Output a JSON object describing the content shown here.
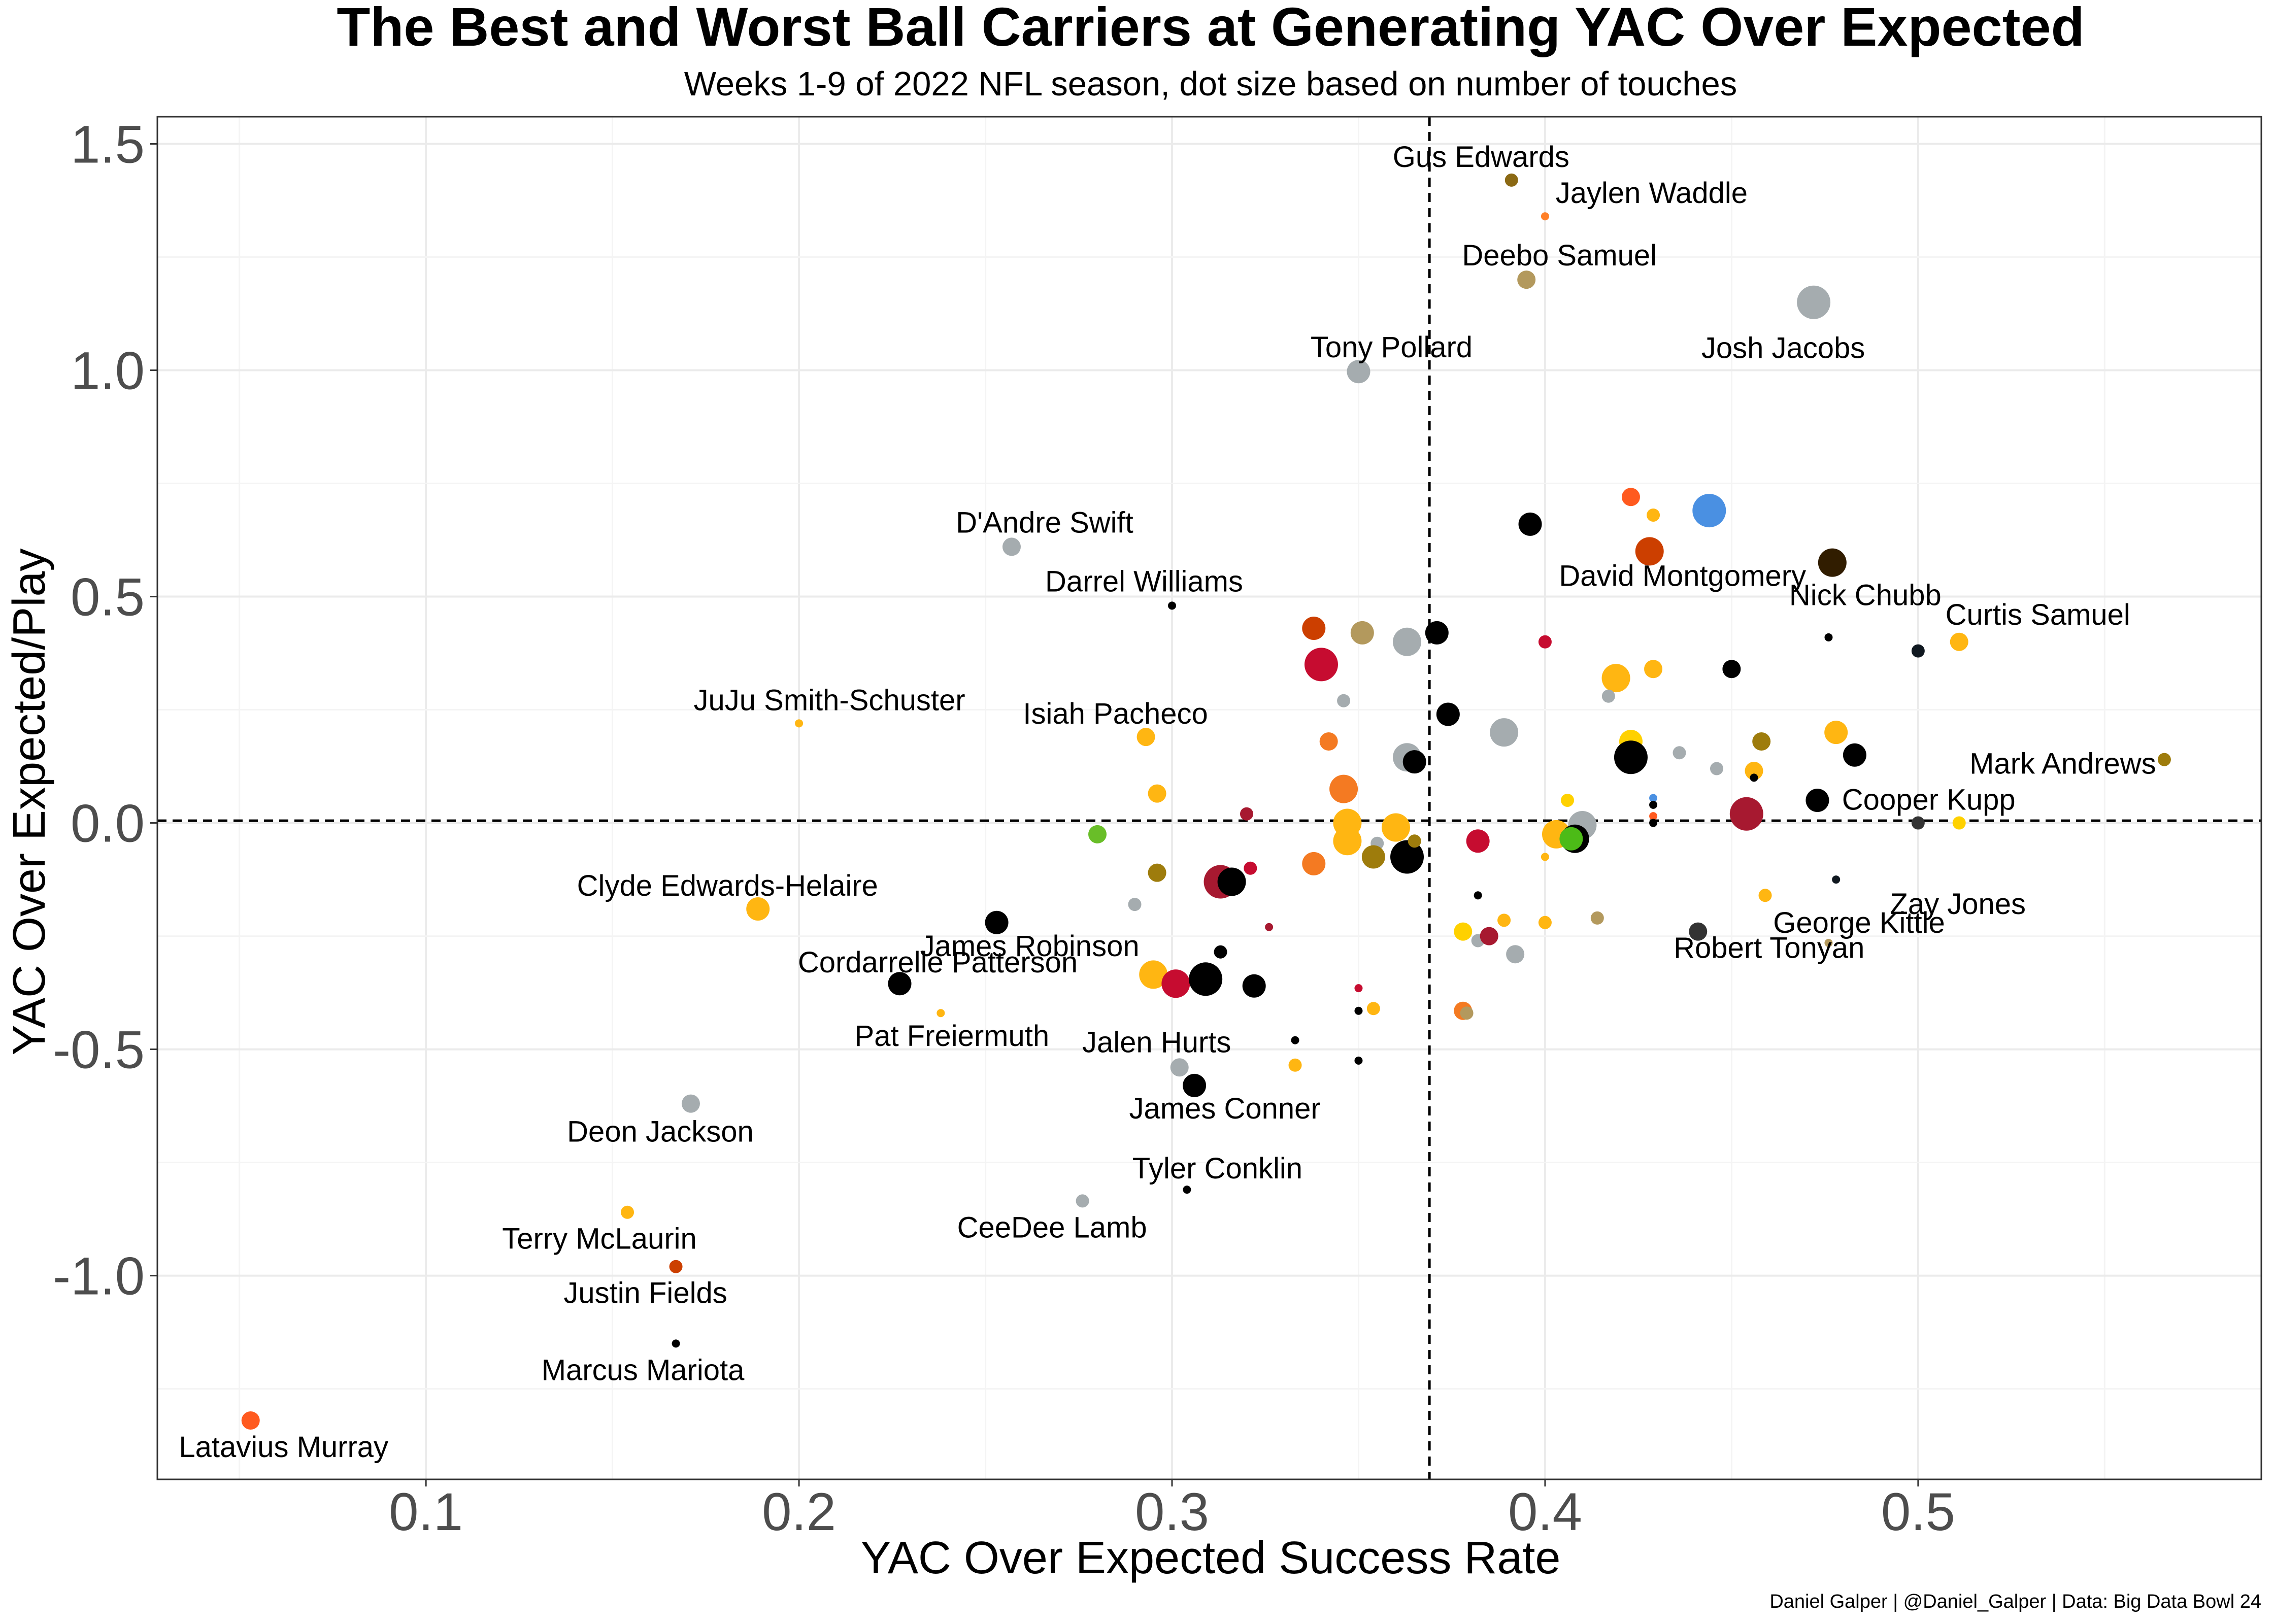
{
  "chart_data": {
    "type": "scatter",
    "title": "The Best and Worst Ball Carriers at Generating YAC Over Expected",
    "subtitle": "Weeks 1-9 of 2022 NFL season, dot size based on number of touches",
    "xlabel": "YAC Over Expected Success Rate",
    "ylabel": "YAC Over Expected/Play",
    "caption": "Daniel Galper | @Daniel_Galper | Data: Big Data Bowl 24",
    "xlim": [
      0.028,
      0.592
    ],
    "ylim": [
      -1.45,
      1.56
    ],
    "x_ticks": [
      0.1,
      0.2,
      0.3,
      0.4,
      0.5
    ],
    "x_tick_labels": [
      "0.1",
      "0.2",
      "0.3",
      "0.4",
      "0.5"
    ],
    "y_ticks": [
      -1.0,
      -0.5,
      0.0,
      0.5,
      1.0,
      1.5
    ],
    "y_tick_labels": [
      "-1.0",
      "-0.5",
      "0.0",
      "0.5",
      "1.0",
      "1.5"
    ],
    "grid": true,
    "reference_lines": {
      "x": 0.369,
      "y": 0.005
    },
    "points": [
      {
        "x": 0.391,
        "y": 1.42,
        "size": 2,
        "color": "#8B6914",
        "label": "Gus Edwards"
      },
      {
        "x": 0.4,
        "y": 1.34,
        "size": 1,
        "color": "#FF7F27",
        "label": "Jaylen Waddle"
      },
      {
        "x": 0.395,
        "y": 1.2,
        "size": 3,
        "color": "#B3995D",
        "label": "Deebo Samuel"
      },
      {
        "x": 0.472,
        "y": 1.15,
        "size": 6,
        "color": "#A5ACAF",
        "label": "Josh Jacobs"
      },
      {
        "x": 0.35,
        "y": 0.997,
        "size": 4,
        "color": "#A5ACAF",
        "label": "Tony Pollard"
      },
      {
        "x": 0.444,
        "y": 0.69,
        "size": 6,
        "color": "#4A90E2"
      },
      {
        "x": 0.423,
        "y": 0.72,
        "size": 3,
        "color": "#FF5A1F"
      },
      {
        "x": 0.429,
        "y": 0.68,
        "size": 2,
        "color": "#FFB612"
      },
      {
        "x": 0.396,
        "y": 0.66,
        "size": 4,
        "color": "#000000"
      },
      {
        "x": 0.428,
        "y": 0.6,
        "size": 5,
        "color": "#CC3F00",
        "label": "David Montgomery"
      },
      {
        "x": 0.477,
        "y": 0.575,
        "size": 5,
        "color": "#311D00",
        "label": "Nick Chubb"
      },
      {
        "x": 0.257,
        "y": 0.61,
        "size": 3,
        "color": "#A5ACAF",
        "label": "D'Andre Swift"
      },
      {
        "x": 0.3,
        "y": 0.48,
        "size": 1,
        "color": "#000000",
        "label": "Darrel Williams"
      },
      {
        "x": 0.476,
        "y": 0.41,
        "size": 1,
        "color": "#000000"
      },
      {
        "x": 0.511,
        "y": 0.4,
        "size": 3,
        "color": "#FFB612",
        "label": "Curtis Samuel"
      },
      {
        "x": 0.5,
        "y": 0.38,
        "size": 2,
        "color": "#101820"
      },
      {
        "x": 0.566,
        "y": 0.14,
        "size": 2,
        "color": "#9E7C0C",
        "label": "Mark Andrews"
      },
      {
        "x": 0.2,
        "y": 0.22,
        "size": 1,
        "color": "#FFB612",
        "label": "JuJu Smith-Schuster"
      },
      {
        "x": 0.293,
        "y": 0.19,
        "size": 3,
        "color": "#FFB612",
        "label": "Isiah Pacheco"
      },
      {
        "x": 0.338,
        "y": 0.43,
        "size": 4,
        "color": "#CC3F00"
      },
      {
        "x": 0.351,
        "y": 0.42,
        "size": 4,
        "color": "#B3995D"
      },
      {
        "x": 0.363,
        "y": 0.4,
        "size": 5,
        "color": "#A5ACAF"
      },
      {
        "x": 0.371,
        "y": 0.42,
        "size": 4,
        "color": "#000000"
      },
      {
        "x": 0.34,
        "y": 0.35,
        "size": 6,
        "color": "#C60C30"
      },
      {
        "x": 0.4,
        "y": 0.4,
        "size": 2,
        "color": "#C60C30"
      },
      {
        "x": 0.419,
        "y": 0.32,
        "size": 5,
        "color": "#FFB612"
      },
      {
        "x": 0.429,
        "y": 0.34,
        "size": 3,
        "color": "#FFB612"
      },
      {
        "x": 0.45,
        "y": 0.34,
        "size": 3,
        "color": "#000000"
      },
      {
        "x": 0.346,
        "y": 0.27,
        "size": 2,
        "color": "#A5ACAF"
      },
      {
        "x": 0.417,
        "y": 0.28,
        "size": 2,
        "color": "#A5ACAF"
      },
      {
        "x": 0.374,
        "y": 0.24,
        "size": 4,
        "color": "#000000"
      },
      {
        "x": 0.389,
        "y": 0.2,
        "size": 5,
        "color": "#A5ACAF"
      },
      {
        "x": 0.478,
        "y": 0.2,
        "size": 4,
        "color": "#FFB612"
      },
      {
        "x": 0.342,
        "y": 0.18,
        "size": 3,
        "color": "#F47A22"
      },
      {
        "x": 0.423,
        "y": 0.18,
        "size": 4,
        "color": "#FFD100"
      },
      {
        "x": 0.458,
        "y": 0.18,
        "size": 3,
        "color": "#9E7C0C"
      },
      {
        "x": 0.363,
        "y": 0.145,
        "size": 5,
        "color": "#A5ACAF"
      },
      {
        "x": 0.365,
        "y": 0.135,
        "size": 4,
        "color": "#000000"
      },
      {
        "x": 0.423,
        "y": 0.145,
        "size": 6,
        "color": "#000000"
      },
      {
        "x": 0.436,
        "y": 0.155,
        "size": 2,
        "color": "#A5ACAF"
      },
      {
        "x": 0.446,
        "y": 0.12,
        "size": 2,
        "color": "#A5ACAF"
      },
      {
        "x": 0.456,
        "y": 0.115,
        "size": 3,
        "color": "#FFB612"
      },
      {
        "x": 0.483,
        "y": 0.15,
        "size": 4,
        "color": "#000000"
      },
      {
        "x": 0.456,
        "y": 0.1,
        "size": 1,
        "color": "#000000"
      },
      {
        "x": 0.346,
        "y": 0.075,
        "size": 5,
        "color": "#F47A22"
      },
      {
        "x": 0.296,
        "y": 0.065,
        "size": 3,
        "color": "#FFB612"
      },
      {
        "x": 0.32,
        "y": 0.02,
        "size": 2,
        "color": "#A71930"
      },
      {
        "x": 0.28,
        "y": -0.025,
        "size": 3,
        "color": "#69BE28"
      },
      {
        "x": 0.347,
        "y": 0.0,
        "size": 5,
        "color": "#FFB612"
      },
      {
        "x": 0.36,
        "y": -0.01,
        "size": 5,
        "color": "#FFB612"
      },
      {
        "x": 0.347,
        "y": -0.04,
        "size": 5,
        "color": "#FFB612"
      },
      {
        "x": 0.355,
        "y": -0.045,
        "size": 2,
        "color": "#A5ACAF"
      },
      {
        "x": 0.363,
        "y": -0.075,
        "size": 6,
        "color": "#000000"
      },
      {
        "x": 0.354,
        "y": -0.075,
        "size": 4,
        "color": "#9E7C0C"
      },
      {
        "x": 0.365,
        "y": -0.04,
        "size": 2,
        "color": "#9E7C0C"
      },
      {
        "x": 0.406,
        "y": 0.05,
        "size": 2,
        "color": "#FFD100"
      },
      {
        "x": 0.403,
        "y": -0.025,
        "size": 5,
        "color": "#FFB612"
      },
      {
        "x": 0.41,
        "y": -0.005,
        "size": 5,
        "color": "#A5ACAF"
      },
      {
        "x": 0.408,
        "y": -0.035,
        "size": 5,
        "color": "#000000"
      },
      {
        "x": 0.407,
        "y": -0.035,
        "size": 4,
        "color": "#4CBB17"
      },
      {
        "x": 0.382,
        "y": -0.04,
        "size": 4,
        "color": "#C60C30"
      },
      {
        "x": 0.429,
        "y": 0.055,
        "size": 1,
        "color": "#4A90E2"
      },
      {
        "x": 0.429,
        "y": 0.04,
        "size": 1,
        "color": "#000000"
      },
      {
        "x": 0.429,
        "y": 0.015,
        "size": 1,
        "color": "#FF5A1F"
      },
      {
        "x": 0.429,
        "y": 0.0,
        "size": 1,
        "color": "#000000"
      },
      {
        "x": 0.454,
        "y": 0.02,
        "size": 6,
        "color": "#A71930"
      },
      {
        "x": 0.473,
        "y": 0.05,
        "size": 4,
        "color": "#000000"
      },
      {
        "x": 0.5,
        "y": 0.0,
        "size": 2,
        "color": "#333333"
      },
      {
        "x": 0.511,
        "y": 0.0,
        "size": 2,
        "color": "#FFD100",
        "label": "Cooper Kupp"
      },
      {
        "x": 0.4,
        "y": -0.075,
        "size": 1,
        "color": "#FFB612"
      },
      {
        "x": 0.478,
        "y": -0.125,
        "size": 1,
        "color": "#101820",
        "label": "Zay Jones"
      },
      {
        "x": 0.321,
        "y": -0.1,
        "size": 2,
        "color": "#C60C30"
      },
      {
        "x": 0.338,
        "y": -0.09,
        "size": 4,
        "color": "#F47A22"
      },
      {
        "x": 0.296,
        "y": -0.11,
        "size": 3,
        "color": "#9E7C0C"
      },
      {
        "x": 0.313,
        "y": -0.13,
        "size": 6,
        "color": "#A71930"
      },
      {
        "x": 0.316,
        "y": -0.13,
        "size": 5,
        "color": "#000000"
      },
      {
        "x": 0.189,
        "y": -0.19,
        "size": 4,
        "color": "#FFB612",
        "label": "Clyde Edwards-Helaire"
      },
      {
        "x": 0.29,
        "y": -0.18,
        "size": 2,
        "color": "#A5ACAF"
      },
      {
        "x": 0.253,
        "y": -0.22,
        "size": 4,
        "color": "#000000",
        "label": "James Robinson"
      },
      {
        "x": 0.326,
        "y": -0.23,
        "size": 1,
        "color": "#A71930"
      },
      {
        "x": 0.382,
        "y": -0.16,
        "size": 1,
        "color": "#000000"
      },
      {
        "x": 0.459,
        "y": -0.16,
        "size": 2,
        "color": "#FFB612"
      },
      {
        "x": 0.389,
        "y": -0.215,
        "size": 2,
        "color": "#FFB612"
      },
      {
        "x": 0.4,
        "y": -0.22,
        "size": 2,
        "color": "#FFB612"
      },
      {
        "x": 0.414,
        "y": -0.21,
        "size": 2,
        "color": "#B3995D"
      },
      {
        "x": 0.378,
        "y": -0.24,
        "size": 3,
        "color": "#FFD100"
      },
      {
        "x": 0.382,
        "y": -0.26,
        "size": 2,
        "color": "#A5ACAF"
      },
      {
        "x": 0.385,
        "y": -0.25,
        "size": 3,
        "color": "#A71930"
      },
      {
        "x": 0.392,
        "y": -0.29,
        "size": 3,
        "color": "#A5ACAF"
      },
      {
        "x": 0.441,
        "y": -0.24,
        "size": 3,
        "color": "#333333",
        "label": "Robert Tonyan"
      },
      {
        "x": 0.476,
        "y": -0.265,
        "size": 1,
        "color": "#B3995D",
        "label": "George Kittle"
      },
      {
        "x": 0.227,
        "y": -0.355,
        "size": 4,
        "color": "#000000",
        "label": "Cordarrelle Patterson"
      },
      {
        "x": 0.295,
        "y": -0.335,
        "size": 5,
        "color": "#FFB612"
      },
      {
        "x": 0.301,
        "y": -0.355,
        "size": 5,
        "color": "#C60C30"
      },
      {
        "x": 0.309,
        "y": -0.345,
        "size": 6,
        "color": "#000000"
      },
      {
        "x": 0.313,
        "y": -0.285,
        "size": 2,
        "color": "#000000"
      },
      {
        "x": 0.322,
        "y": -0.36,
        "size": 4,
        "color": "#000000"
      },
      {
        "x": 0.238,
        "y": -0.42,
        "size": 1,
        "color": "#FFB612",
        "label": "Pat Freiermuth"
      },
      {
        "x": 0.35,
        "y": -0.365,
        "size": 1,
        "color": "#C60C30"
      },
      {
        "x": 0.35,
        "y": -0.415,
        "size": 1,
        "color": "#000000"
      },
      {
        "x": 0.354,
        "y": -0.41,
        "size": 2,
        "color": "#FFB612"
      },
      {
        "x": 0.378,
        "y": -0.415,
        "size": 3,
        "color": "#F47A22"
      },
      {
        "x": 0.379,
        "y": -0.42,
        "size": 2,
        "color": "#B3995D"
      },
      {
        "x": 0.333,
        "y": -0.48,
        "size": 1,
        "color": "#000000"
      },
      {
        "x": 0.302,
        "y": -0.54,
        "size": 3,
        "color": "#A5ACAF",
        "label": "Jalen Hurts"
      },
      {
        "x": 0.333,
        "y": -0.535,
        "size": 2,
        "color": "#FFB612"
      },
      {
        "x": 0.35,
        "y": -0.525,
        "size": 1,
        "color": "#000000"
      },
      {
        "x": 0.306,
        "y": -0.58,
        "size": 4,
        "color": "#000000",
        "label": "James Conner"
      },
      {
        "x": 0.171,
        "y": -0.62,
        "size": 3,
        "color": "#A5ACAF",
        "label": "Deon Jackson"
      },
      {
        "x": 0.304,
        "y": -0.81,
        "size": 1,
        "color": "#000000",
        "label": "Tyler Conklin"
      },
      {
        "x": 0.276,
        "y": -0.835,
        "size": 2,
        "color": "#A5ACAF",
        "label": "CeeDee Lamb"
      },
      {
        "x": 0.154,
        "y": -0.86,
        "size": 2,
        "color": "#FFB612",
        "label": "Terry McLaurin"
      },
      {
        "x": 0.167,
        "y": -0.98,
        "size": 2,
        "color": "#CC3F00",
        "label": "Justin Fields"
      },
      {
        "x": 0.167,
        "y": -1.15,
        "size": 1,
        "color": "#000000",
        "label": "Marcus Mariota"
      },
      {
        "x": 0.053,
        "y": -1.32,
        "size": 3,
        "color": "#FF5A1F",
        "label": "Latavius Murray"
      }
    ]
  }
}
